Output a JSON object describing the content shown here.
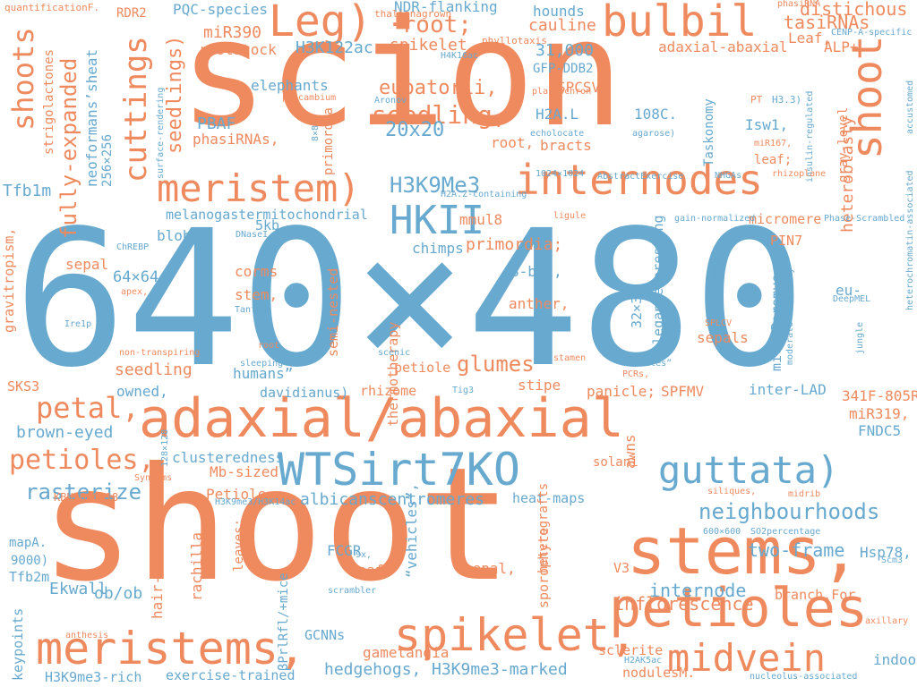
{
  "palette": {
    "orange": "#ef8a5f",
    "blue": "#67a9cf"
  },
  "words": [
    {
      "text": "640×480",
      "color": "blue",
      "vertical": false
    },
    {
      "text": "scion",
      "color": "orange",
      "vertical": false
    },
    {
      "text": "shoot",
      "color": "orange",
      "vertical": false
    },
    {
      "text": "adaxial/abaxial",
      "color": "orange",
      "vertical": false
    },
    {
      "text": "stems,",
      "color": "orange",
      "vertical": false
    },
    {
      "text": "WTSirt7KO",
      "color": "blue",
      "vertical": false
    },
    {
      "text": "guttata)",
      "color": "blue",
      "vertical": false
    },
    {
      "text": "petioles",
      "color": "orange",
      "vertical": false
    },
    {
      "text": "meristems,",
      "color": "orange",
      "vertical": false
    },
    {
      "text": "spikelet,",
      "color": "orange",
      "vertical": false
    },
    {
      "text": "midvein",
      "color": "orange",
      "vertical": false
    },
    {
      "text": "internodes",
      "color": "orange",
      "vertical": false
    },
    {
      "text": "meristem)",
      "color": "orange",
      "vertical": false
    },
    {
      "text": "bulbil",
      "color": "orange",
      "vertical": false
    },
    {
      "text": "Leg)",
      "color": "orange",
      "vertical": false
    },
    {
      "text": "HKII",
      "color": "blue",
      "vertical": false
    },
    {
      "text": "cuttings",
      "color": "orange",
      "vertical": true
    },
    {
      "text": "shoot",
      "color": "orange",
      "vertical": true
    },
    {
      "text": "shoots",
      "color": "orange",
      "vertical": true
    },
    {
      "text": "seedling,",
      "color": "orange",
      "vertical": false
    },
    {
      "text": "neighbourhoods",
      "color": "blue",
      "vertical": false
    },
    {
      "text": "petal,",
      "color": "orange",
      "vertical": false
    },
    {
      "text": "petioles,",
      "color": "orange",
      "vertical": false
    },
    {
      "text": "rasterize",
      "color": "blue",
      "vertical": false
    },
    {
      "text": "H3K9Me3",
      "color": "blue",
      "vertical": false
    },
    {
      "text": "20x20",
      "color": "blue",
      "vertical": false
    },
    {
      "text": "glumes",
      "color": "orange",
      "vertical": false
    },
    {
      "text": "·root;",
      "color": "orange",
      "vertical": false
    },
    {
      "text": "eupatorii,",
      "color": "orange",
      "vertical": false
    },
    {
      "text": "fully-expanded",
      "color": "orange",
      "vertical": true
    },
    {
      "text": "seedlings)",
      "color": "orange",
      "vertical": true
    },
    {
      "text": "heteroblasty",
      "color": "orange",
      "vertical": true
    },
    {
      "text": "two-frame",
      "color": "blue",
      "vertical": false
    },
    {
      "text": "internode",
      "color": "blue",
      "vertical": false
    },
    {
      "text": "inflorescence",
      "color": "orange",
      "vertical": false
    },
    {
      "text": "tasiRNAs",
      "color": "orange",
      "vertical": false
    },
    {
      "text": "distichous",
      "color": "orange",
      "vertical": false
    },
    {
      "text": "brown-eyed",
      "color": "blue",
      "vertical": false
    },
    {
      "text": "Ekwall",
      "color": "blue",
      "vertical": false
    },
    {
      "text": "ob/ob",
      "color": "blue",
      "vertical": false
    },
    {
      "text": "H3K9me3-marked",
      "color": "blue",
      "vertical": false
    },
    {
      "text": "hedgehogs,",
      "color": "blue",
      "vertical": false
    },
    {
      "text": "albicanscentromeres",
      "color": "blue",
      "vertical": false
    },
    {
      "text": "31,000",
      "color": "blue",
      "vertical": false
    },
    {
      "text": "cauline",
      "color": "orange",
      "vertical": false
    },
    {
      "text": "hounds",
      "color": "blue",
      "vertical": false
    },
    {
      "text": "NDR-flanking",
      "color": "blue",
      "vertical": false
    },
    {
      "text": "PQC-species",
      "color": "blue",
      "vertical": false
    },
    {
      "text": "miR390",
      "color": "orange",
      "vertical": false
    },
    {
      "text": "rootstock",
      "color": "orange",
      "vertical": false
    },
    {
      "text": "H3K122ac",
      "color": "blue",
      "vertical": false
    },
    {
      "text": "spikelet",
      "color": "orange",
      "vertical": false
    },
    {
      "text": "adaxial-abaxial",
      "color": "orange",
      "vertical": false
    },
    {
      "text": "ALP+",
      "color": "orange",
      "vertical": false
    },
    {
      "text": "Leaf,",
      "color": "orange",
      "vertical": false
    },
    {
      "text": "GFP-DDB2",
      "color": "blue",
      "vertical": false
    },
    {
      "text": "SPCSV",
      "color": "orange",
      "vertical": false
    },
    {
      "text": "elephants",
      "color": "blue",
      "vertical": false
    },
    {
      "text": "H2A.L",
      "color": "blue",
      "vertical": false
    },
    {
      "text": "108C.",
      "color": "blue",
      "vertical": false
    },
    {
      "text": "PBAF",
      "color": "blue",
      "vertical": false
    },
    {
      "text": "phasiRNAs,",
      "color": "orange",
      "vertical": false
    },
    {
      "text": "root,",
      "color": "orange",
      "vertical": false
    },
    {
      "text": "bracts",
      "color": "orange",
      "vertical": false
    },
    {
      "text": "Isw1,",
      "color": "blue",
      "vertical": false
    },
    {
      "text": "leaf;",
      "color": "orange",
      "vertical": false
    },
    {
      "text": "Tfb1m",
      "color": "blue",
      "vertical": false
    },
    {
      "text": "neoformans’sheat",
      "color": "blue",
      "vertical": true
    },
    {
      "text": "256×256",
      "color": "blue",
      "vertical": true
    },
    {
      "text": "melanogastermitochondrial",
      "color": "blue",
      "vertical": false
    },
    {
      "text": "mmul8",
      "color": "orange",
      "vertical": false
    },
    {
      "text": "primordia;",
      "color": "orange",
      "vertical": false
    },
    {
      "text": "5kb",
      "color": "blue",
      "vertical": false
    },
    {
      "text": "blobs",
      "color": "blue",
      "vertical": false
    },
    {
      "text": "chimps",
      "color": "blue",
      "vertical": false
    },
    {
      "text": "sepal",
      "color": "orange",
      "vertical": false
    },
    {
      "text": "64×64",
      "color": "blue",
      "vertical": false
    },
    {
      "text": "8-bit,",
      "color": "blue",
      "vertical": false
    },
    {
      "text": "corms",
      "color": "orange",
      "vertical": false
    },
    {
      "text": "stem,",
      "color": "orange",
      "vertical": false
    },
    {
      "text": "anther,",
      "color": "orange",
      "vertical": false
    },
    {
      "text": "32×32",
      "color": "blue",
      "vertical": true
    },
    {
      "text": "elegansexpressing",
      "color": "blue",
      "vertical": true
    },
    {
      "text": "Taskonomy",
      "color": "blue",
      "vertical": true
    },
    {
      "text": "gray-level",
      "color": "orange",
      "vertical": true
    },
    {
      "text": "micromere",
      "color": "orange",
      "vertical": false
    },
    {
      "text": "PIN7",
      "color": "orange",
      "vertical": false
    },
    {
      "text": "mice,Peromyscus",
      "color": "blue",
      "vertical": true
    },
    {
      "text": "eu-",
      "color": "blue",
      "vertical": false
    },
    {
      "text": "sepals",
      "color": "orange",
      "vertical": false
    },
    {
      "text": "seedling",
      "color": "orange",
      "vertical": false
    },
    {
      "text": "owned,",
      "color": "blue",
      "vertical": false
    },
    {
      "text": "humans”",
      "color": "blue",
      "vertical": false
    },
    {
      "text": "davidianus)",
      "color": "blue",
      "vertical": false
    },
    {
      "text": "rhizome",
      "color": "orange",
      "vertical": false
    },
    {
      "text": "petiole",
      "color": "orange",
      "vertical": false
    },
    {
      "text": "stipe",
      "color": "orange",
      "vertical": false
    },
    {
      "text": "panicle;",
      "color": "orange",
      "vertical": false
    },
    {
      "text": "SPFMV",
      "color": "orange",
      "vertical": false
    },
    {
      "text": "inter-LAD",
      "color": "blue",
      "vertical": false
    },
    {
      "text": "341F-805R",
      "color": "orange",
      "vertical": false
    },
    {
      "text": "miR319,",
      "color": "orange",
      "vertical": false
    },
    {
      "text": "FNDC5",
      "color": "blue",
      "vertical": false
    },
    {
      "text": "SKS3",
      "color": "orange",
      "vertical": false
    },
    {
      "text": "clusteredness",
      "color": "blue",
      "vertical": false
    },
    {
      "text": "Mb-sized",
      "color": "orange",
      "vertical": false
    },
    {
      "text": "Petiole",
      "color": "orange",
      "vertical": false
    },
    {
      "text": "solani",
      "color": "orange",
      "vertical": false
    },
    {
      "text": "awns",
      "color": "orange",
      "vertical": true
    },
    {
      "text": "heat-maps",
      "color": "blue",
      "vertical": false
    },
    {
      "text": "hair-cell",
      "color": "orange",
      "vertical": true
    },
    {
      "text": "rachilla",
      "color": "orange",
      "vertical": true
    },
    {
      "text": "FCGR",
      "color": "blue",
      "vertical": false
    },
    {
      "text": "leaf",
      "color": "orange",
      "vertical": false
    },
    {
      "text": "sepal,",
      "color": "orange",
      "vertical": false
    },
    {
      "text": "heterografts",
      "color": "orange",
      "vertical": true
    },
    {
      "text": "sporophyte",
      "color": "orange",
      "vertical": true
    },
    {
      "text": "V3",
      "color": "orange",
      "vertical": false
    },
    {
      "text": "branch.For",
      "color": "orange",
      "vertical": false
    },
    {
      "text": "Hsp78,",
      "color": "blue",
      "vertical": false
    },
    {
      "text": "sclerite",
      "color": "orange",
      "vertical": false
    },
    {
      "text": "indoor,",
      "color": "blue",
      "vertical": false
    },
    {
      "text": "nodulesM.",
      "color": "orange",
      "vertical": false
    },
    {
      "text": "gametangia",
      "color": "orange",
      "vertical": false
    },
    {
      "text": "GCNNs",
      "color": "blue",
      "vertical": false
    },
    {
      "text": "exercise-trained",
      "color": "blue",
      "vertical": false
    },
    {
      "text": "H3K9me3-rich",
      "color": "blue",
      "vertical": false
    },
    {
      "text": "Tfb2m",
      "color": "blue",
      "vertical": false
    },
    {
      "text": "9000)",
      "color": "blue",
      "vertical": false
    },
    {
      "text": "mapA.",
      "color": "blue",
      "vertical": false
    },
    {
      "text": "KBH2006718",
      "color": "orange",
      "vertical": false
    },
    {
      "text": "gravitropism,",
      "color": "orange",
      "vertical": true
    },
    {
      "text": "strigolactones",
      "color": "orange",
      "vertical": true
    },
    {
      "text": "keypoints",
      "color": "blue",
      "vertical": true
    },
    {
      "text": "semi-nested",
      "color": "orange",
      "vertical": true
    },
    {
      "text": "thermotherapy",
      "color": "orange",
      "vertical": true
    },
    {
      "text": "“vehicles”,",
      "color": "blue",
      "vertical": true
    },
    {
      "text": "βPrlRfl/+mice",
      "color": "blue",
      "vertical": true
    },
    {
      "text": "leaves;",
      "color": "orange",
      "vertical": true
    },
    {
      "text": "primordia",
      "color": "orange",
      "vertical": true
    },
    {
      "text": "RDR2",
      "color": "orange",
      "vertical": false
    },
    {
      "text": "quantificationF.",
      "color": "orange",
      "vertical": false
    },
    {
      "text": "thalianagrown",
      "color": "orange",
      "vertical": false
    },
    {
      "text": "phyllotaxis",
      "color": "orange",
      "vertical": false
    },
    {
      "text": "H4K16ac",
      "color": "blue",
      "vertical": false
    },
    {
      "text": "phasiRNA",
      "color": "orange",
      "vertical": false
    },
    {
      "text": "CENP-A-specific",
      "color": "blue",
      "vertical": false
    },
    {
      "text": "insulin-regulated",
      "color": "blue",
      "vertical": true
    },
    {
      "text": "accustomed",
      "color": "blue",
      "vertical": true
    },
    {
      "text": "Aronov",
      "color": "blue",
      "vertical": false
    },
    {
      "text": "procambium",
      "color": "orange",
      "vertical": false
    },
    {
      "text": "plastochron",
      "color": "orange",
      "vertical": false
    },
    {
      "text": "echolocate",
      "color": "blue",
      "vertical": false
    },
    {
      "text": "agarose)",
      "color": "blue",
      "vertical": false
    },
    {
      "text": "PT",
      "color": "orange",
      "vertical": false
    },
    {
      "text": "H3.3)",
      "color": "blue",
      "vertical": false
    },
    {
      "text": "miR167,",
      "color": "orange",
      "vertical": false
    },
    {
      "text": "rhizoplane",
      "color": "orange",
      "vertical": false
    },
    {
      "text": "NHGAs",
      "color": "blue",
      "vertical": false
    },
    {
      "text": "1024×1024",
      "color": "blue",
      "vertical": false
    },
    {
      "text": "AbstractExercise",
      "color": "blue",
      "vertical": false
    },
    {
      "text": "H2A.Z-containing",
      "color": "blue",
      "vertical": false
    },
    {
      "text": "ligule",
      "color": "orange",
      "vertical": false
    },
    {
      "text": "gain-normalized",
      "color": "blue",
      "vertical": false
    },
    {
      "text": "Phase-Scrambled",
      "color": "blue",
      "vertical": false
    },
    {
      "text": "heterochromatin-associated",
      "color": "blue",
      "vertical": true
    },
    {
      "text": "DNaseI,",
      "color": "blue",
      "vertical": false
    },
    {
      "text": "ChREBP",
      "color": "blue",
      "vertical": false
    },
    {
      "text": "apex,",
      "color": "orange",
      "vertical": false
    },
    {
      "text": "Tantan",
      "color": "blue",
      "vertical": false
    },
    {
      "text": "Ire1p",
      "color": "blue",
      "vertical": false
    },
    {
      "text": "non-transpiring",
      "color": "orange",
      "vertical": false
    },
    {
      "text": "root",
      "color": "orange",
      "vertical": false
    },
    {
      "text": "sleeping",
      "color": "blue",
      "vertical": false
    },
    {
      "text": "scenic",
      "color": "blue",
      "vertical": false
    },
    {
      "text": "stamen",
      "color": "orange",
      "vertical": false
    },
    {
      "text": "vehicles”",
      "color": "blue",
      "vertical": false
    },
    {
      "text": "PCRs,",
      "color": "orange",
      "vertical": false
    },
    {
      "text": "Tig3",
      "color": "blue",
      "vertical": false
    },
    {
      "text": "SPLCV",
      "color": "orange",
      "vertical": false
    },
    {
      "text": "100Kb",
      "color": "blue",
      "vertical": true
    },
    {
      "text": "moderate-intensity",
      "color": "blue",
      "vertical": true
    },
    {
      "text": "DeepMEL",
      "color": "blue",
      "vertical": false
    },
    {
      "text": "jungle",
      "color": "blue",
      "vertical": true
    },
    {
      "text": "surface-rendering",
      "color": "blue",
      "vertical": true
    },
    {
      "text": "8×8",
      "color": "blue",
      "vertical": true
    },
    {
      "text": "128×128",
      "color": "blue",
      "vertical": true
    },
    {
      "text": "SynComs",
      "color": "orange",
      "vertical": false
    },
    {
      "text": "H3K9me3/H3K14ac",
      "color": "blue",
      "vertical": false
    },
    {
      "text": "siliques,",
      "color": "orange",
      "vertical": false
    },
    {
      "text": "midrib",
      "color": "orange",
      "vertical": false
    },
    {
      "text": "600×600",
      "color": "blue",
      "vertical": false
    },
    {
      "text": "SO2percentage",
      "color": "blue",
      "vertical": false
    },
    {
      "text": "Scm3",
      "color": "blue",
      "vertical": false
    },
    {
      "text": "axillary",
      "color": "orange",
      "vertical": false
    },
    {
      "text": "9x,",
      "color": "blue",
      "vertical": false
    },
    {
      "text": "scrambler",
      "color": "blue",
      "vertical": false
    },
    {
      "text": "anthesis",
      "color": "orange",
      "vertical": false
    },
    {
      "text": "H2AK5ac",
      "color": "blue",
      "vertical": false
    },
    {
      "text": "nucleolus-associated",
      "color": "blue",
      "vertical": false
    }
  ]
}
